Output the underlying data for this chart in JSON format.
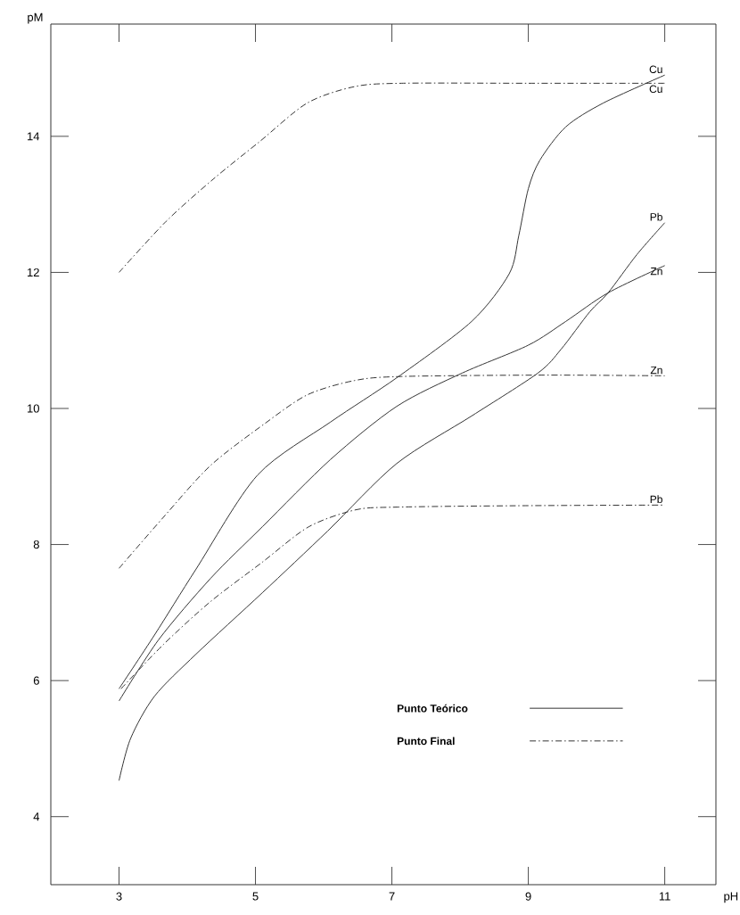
{
  "chart_data": {
    "type": "line",
    "xlabel": "pH",
    "ylabel": "pM",
    "xlim": [
      2,
      11.75
    ],
    "ylim": [
      3,
      15.65
    ],
    "xticks": [
      3,
      5,
      7,
      9,
      11
    ],
    "yticks": [
      4,
      6,
      8,
      10,
      12,
      14
    ],
    "annotations": [
      "Punto Teórico",
      "Punto Final"
    ],
    "series": [
      {
        "name": "Cu",
        "color": "#333333",
        "line_style": "solid",
        "x": [
          3.0,
          3.52,
          4.13,
          5.03,
          6.1,
          7.07,
          8.17,
          8.72,
          8.86,
          9.0,
          9.17,
          9.55,
          10.1,
          11.0
        ],
        "values": [
          5.88,
          6.67,
          7.64,
          9.02,
          9.8,
          10.45,
          11.28,
          11.98,
          12.54,
          13.23,
          13.65,
          14.14,
          14.49,
          14.9
        ]
      },
      {
        "name": "Cu",
        "color": "#333333",
        "line_style": "dashdot",
        "x": [
          3.0,
          3.69,
          4.38,
          5.07,
          5.76,
          6.45,
          7.14,
          9.0,
          11.0
        ],
        "values": [
          12.0,
          12.75,
          13.37,
          13.93,
          14.49,
          14.73,
          14.78,
          14.78,
          14.78
        ]
      },
      {
        "name": "Pb",
        "color": "#333333",
        "line_style": "solid",
        "x": [
          3.0,
          3.17,
          3.52,
          4.13,
          5.1,
          6.06,
          7.07,
          8.17,
          9.14,
          9.48,
          9.9,
          10.17,
          10.59,
          11.0
        ],
        "values": [
          4.53,
          5.15,
          5.77,
          6.39,
          7.29,
          8.2,
          9.19,
          9.89,
          10.52,
          10.87,
          11.42,
          11.7,
          12.26,
          12.73
        ]
      },
      {
        "name": "Zn",
        "color": "#333333",
        "line_style": "solid",
        "x": [
          3.0,
          3.58,
          4.34,
          5.1,
          6.1,
          7.07,
          8.03,
          9.0,
          9.55,
          10.17,
          11.0
        ],
        "values": [
          5.7,
          6.6,
          7.5,
          8.26,
          9.25,
          10.03,
          10.52,
          10.93,
          11.28,
          11.7,
          12.1
        ]
      },
      {
        "name": "Zn",
        "color": "#333333",
        "line_style": "dashdot",
        "x": [
          3.0,
          3.65,
          4.34,
          5.14,
          5.76,
          6.45,
          7.14,
          9.2,
          11.0
        ],
        "values": [
          7.65,
          8.4,
          9.16,
          9.78,
          10.2,
          10.41,
          10.47,
          10.49,
          10.48
        ]
      },
      {
        "name": "Pb",
        "color": "#333333",
        "line_style": "dashdot",
        "x": [
          3.03,
          3.65,
          4.34,
          5.1,
          5.78,
          6.47,
          7.09,
          8.81,
          11.0
        ],
        "values": [
          5.88,
          6.53,
          7.16,
          7.74,
          8.26,
          8.51,
          8.55,
          8.57,
          8.58
        ]
      }
    ]
  }
}
